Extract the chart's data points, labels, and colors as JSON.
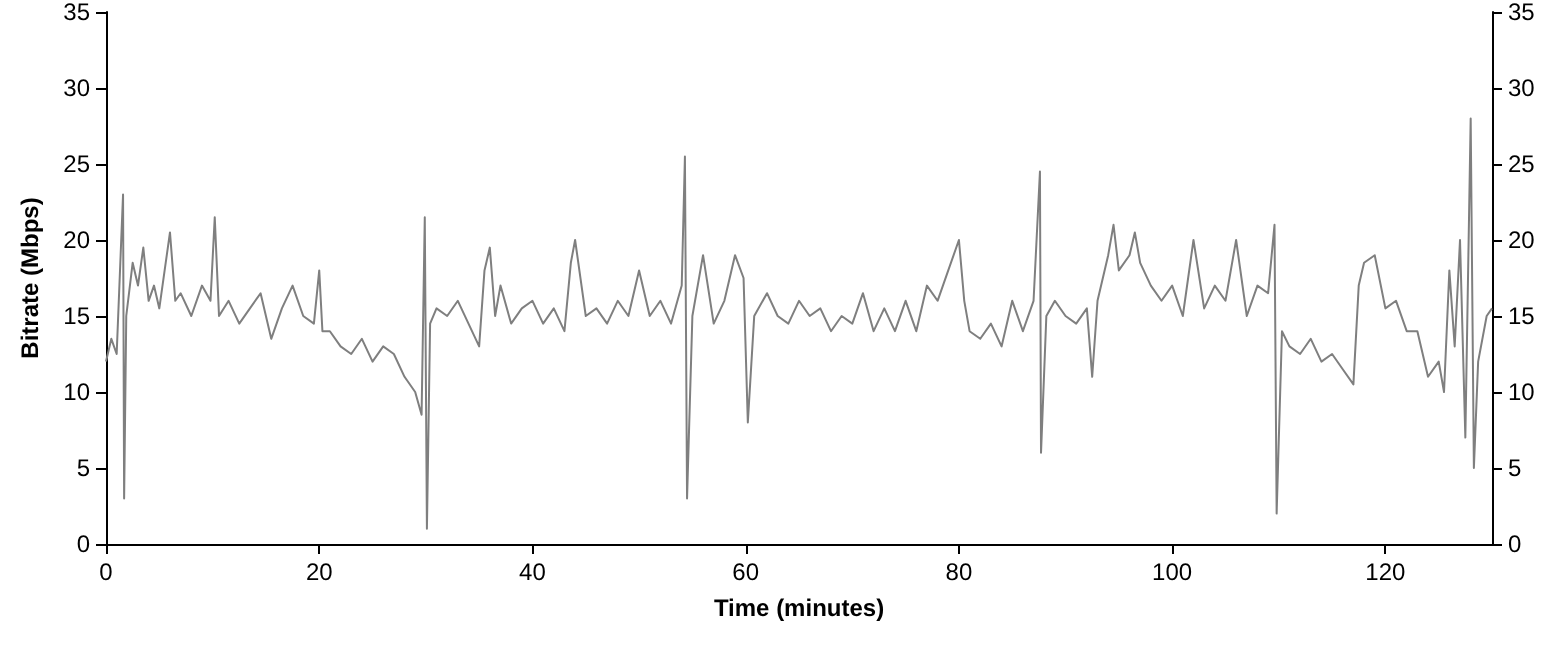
{
  "chart_data": {
    "type": "line",
    "xlabel": "Time (minutes)",
    "ylabel": "Bitrate (Mbps)",
    "xlim": [
      0,
      130
    ],
    "xticks": [
      0,
      20,
      40,
      60,
      80,
      100,
      120
    ],
    "ylim": [
      0,
      35
    ],
    "yticks": [
      0,
      5,
      10,
      15,
      20,
      25,
      30,
      35
    ],
    "y2lim": [
      0,
      35
    ],
    "y2ticks": [
      0,
      5,
      10,
      15,
      20,
      25,
      30,
      35
    ],
    "grid": false,
    "marker": "none",
    "line_style": "solid",
    "series": [
      {
        "color": "#7f7f7f",
        "x": [
          0,
          0.5,
          1,
          1.6,
          1.7,
          1.9,
          2.5,
          3,
          3.5,
          4,
          4.5,
          5,
          5.5,
          6,
          6.5,
          7,
          8,
          9,
          9.8,
          10.2,
          10.6,
          11.5,
          12.5,
          13.5,
          14.5,
          15.5,
          16.5,
          17.5,
          18.5,
          19.5,
          20,
          20.3,
          21,
          22,
          23,
          24,
          25,
          26,
          27,
          28,
          29,
          29.6,
          29.9,
          30.1,
          30.4,
          31,
          32,
          33,
          34,
          35,
          35.5,
          36,
          36.5,
          37,
          38,
          39,
          40,
          41,
          42,
          43,
          43.6,
          44,
          45,
          46,
          47,
          48,
          49,
          50,
          51,
          52,
          53,
          54,
          54.3,
          54.5,
          55,
          56,
          57,
          58,
          59,
          59.8,
          60.2,
          60.8,
          62,
          63,
          64,
          65,
          66,
          67,
          68,
          69,
          70,
          71,
          72,
          73,
          74,
          75,
          76,
          77,
          78,
          79,
          80,
          80.5,
          81,
          82,
          83,
          84,
          85,
          86,
          87,
          87.6,
          87.7,
          88.2,
          89,
          90,
          91,
          92,
          92.5,
          93,
          94,
          94.5,
          95,
          96,
          96.5,
          97,
          98,
          99,
          100,
          101,
          102,
          103,
          104,
          105,
          106,
          107,
          108,
          109,
          109.6,
          109.8,
          110.3,
          111,
          112,
          113,
          114,
          115,
          116,
          117,
          117.5,
          118,
          119,
          120,
          121,
          122,
          123,
          124,
          125,
          125.5,
          126,
          126.5,
          127,
          127.5,
          128,
          128.3,
          128.7,
          129.5,
          130
        ],
        "values": [
          12,
          13.5,
          12.5,
          23,
          3,
          15,
          18.5,
          17,
          19.5,
          16,
          17,
          15.5,
          18,
          20.5,
          16,
          16.5,
          15,
          17,
          16,
          21.5,
          15,
          16,
          14.5,
          15.5,
          16.5,
          13.5,
          15.5,
          17,
          15,
          14.5,
          18,
          14,
          14,
          13,
          12.5,
          13.5,
          12,
          13,
          12.5,
          11,
          10,
          8.5,
          21.5,
          1,
          14.5,
          15.5,
          15,
          16,
          14.5,
          13,
          18,
          19.5,
          15,
          17,
          14.5,
          15.5,
          16,
          14.5,
          15.5,
          14,
          18.5,
          20,
          15,
          15.5,
          14.5,
          16,
          15,
          18,
          15,
          16,
          14.5,
          17,
          25.5,
          3,
          15,
          19,
          14.5,
          16,
          19,
          17.5,
          8,
          15,
          16.5,
          15,
          14.5,
          16,
          15,
          15.5,
          14,
          15,
          14.5,
          16.5,
          14,
          15.5,
          14,
          16,
          14,
          17,
          16,
          18,
          20,
          16,
          14,
          13.5,
          14.5,
          13,
          16,
          14,
          16,
          24.5,
          6,
          15,
          16,
          15,
          14.5,
          15.5,
          11,
          16,
          19,
          21,
          18,
          19,
          20.5,
          18.5,
          17,
          16,
          17,
          15,
          20,
          15.5,
          17,
          16,
          20,
          15,
          17,
          16.5,
          21,
          2,
          14,
          13,
          12.5,
          13.5,
          12,
          12.5,
          11.5,
          10.5,
          17,
          18.5,
          19,
          15.5,
          16,
          14,
          14,
          11,
          12,
          10,
          18,
          13,
          20,
          7,
          28,
          5,
          12,
          15,
          15.5
        ]
      }
    ]
  }
}
